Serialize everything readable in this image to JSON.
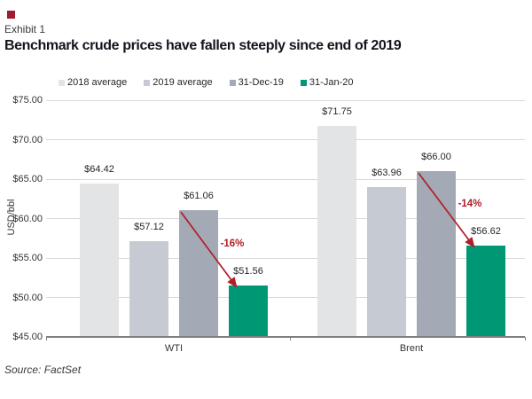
{
  "page": {
    "exhibit_label": "Exhibit 1",
    "title": "Benchmark crude prices have fallen steeply since end of 2019",
    "source": "Source: FactSet",
    "brand_color": "#9e1b32"
  },
  "chart_data": {
    "type": "bar",
    "title": "Benchmark crude prices have fallen steeply since end of 2019",
    "xlabel": "",
    "ylabel": "USD/bbl",
    "ylim": [
      45,
      75
    ],
    "grid": true,
    "legend_position": "top",
    "categories": [
      "WTI",
      "Brent"
    ],
    "series": [
      {
        "name": "2018 average",
        "color": "#e3e4e6",
        "values": [
          64.42,
          71.75
        ]
      },
      {
        "name": "2019 average",
        "color": "#c6cbd3",
        "values": [
          57.12,
          63.96
        ]
      },
      {
        "name": "31-Dec-19",
        "color": "#a3aab5",
        "values": [
          61.06,
          66.0
        ]
      },
      {
        "name": "31-Jan-20",
        "color": "#009874",
        "values": [
          51.56,
          56.62
        ]
      }
    ],
    "bar_labels": [
      [
        "$64.42",
        "$57.12",
        "$61.06",
        "$51.56"
      ],
      [
        "$71.75",
        "$63.96",
        "$66.00",
        "$56.62"
      ]
    ],
    "yticks": [
      {
        "value": 75,
        "label": "$75.00"
      },
      {
        "value": 70,
        "label": "$70.00"
      },
      {
        "value": 65,
        "label": "$65.00"
      },
      {
        "value": 60,
        "label": "$60.00"
      },
      {
        "value": 55,
        "label": "$55.00"
      },
      {
        "value": 50,
        "label": "$50.00"
      },
      {
        "value": 45,
        "label": "$45.00"
      }
    ],
    "annotations": [
      {
        "category": "WTI",
        "text": "-16%",
        "from_series": "31-Dec-19",
        "to_series": "31-Jan-20"
      },
      {
        "category": "Brent",
        "text": "-14%",
        "from_series": "31-Dec-19",
        "to_series": "31-Jan-20"
      }
    ],
    "annotation_color": "#b01e28"
  }
}
